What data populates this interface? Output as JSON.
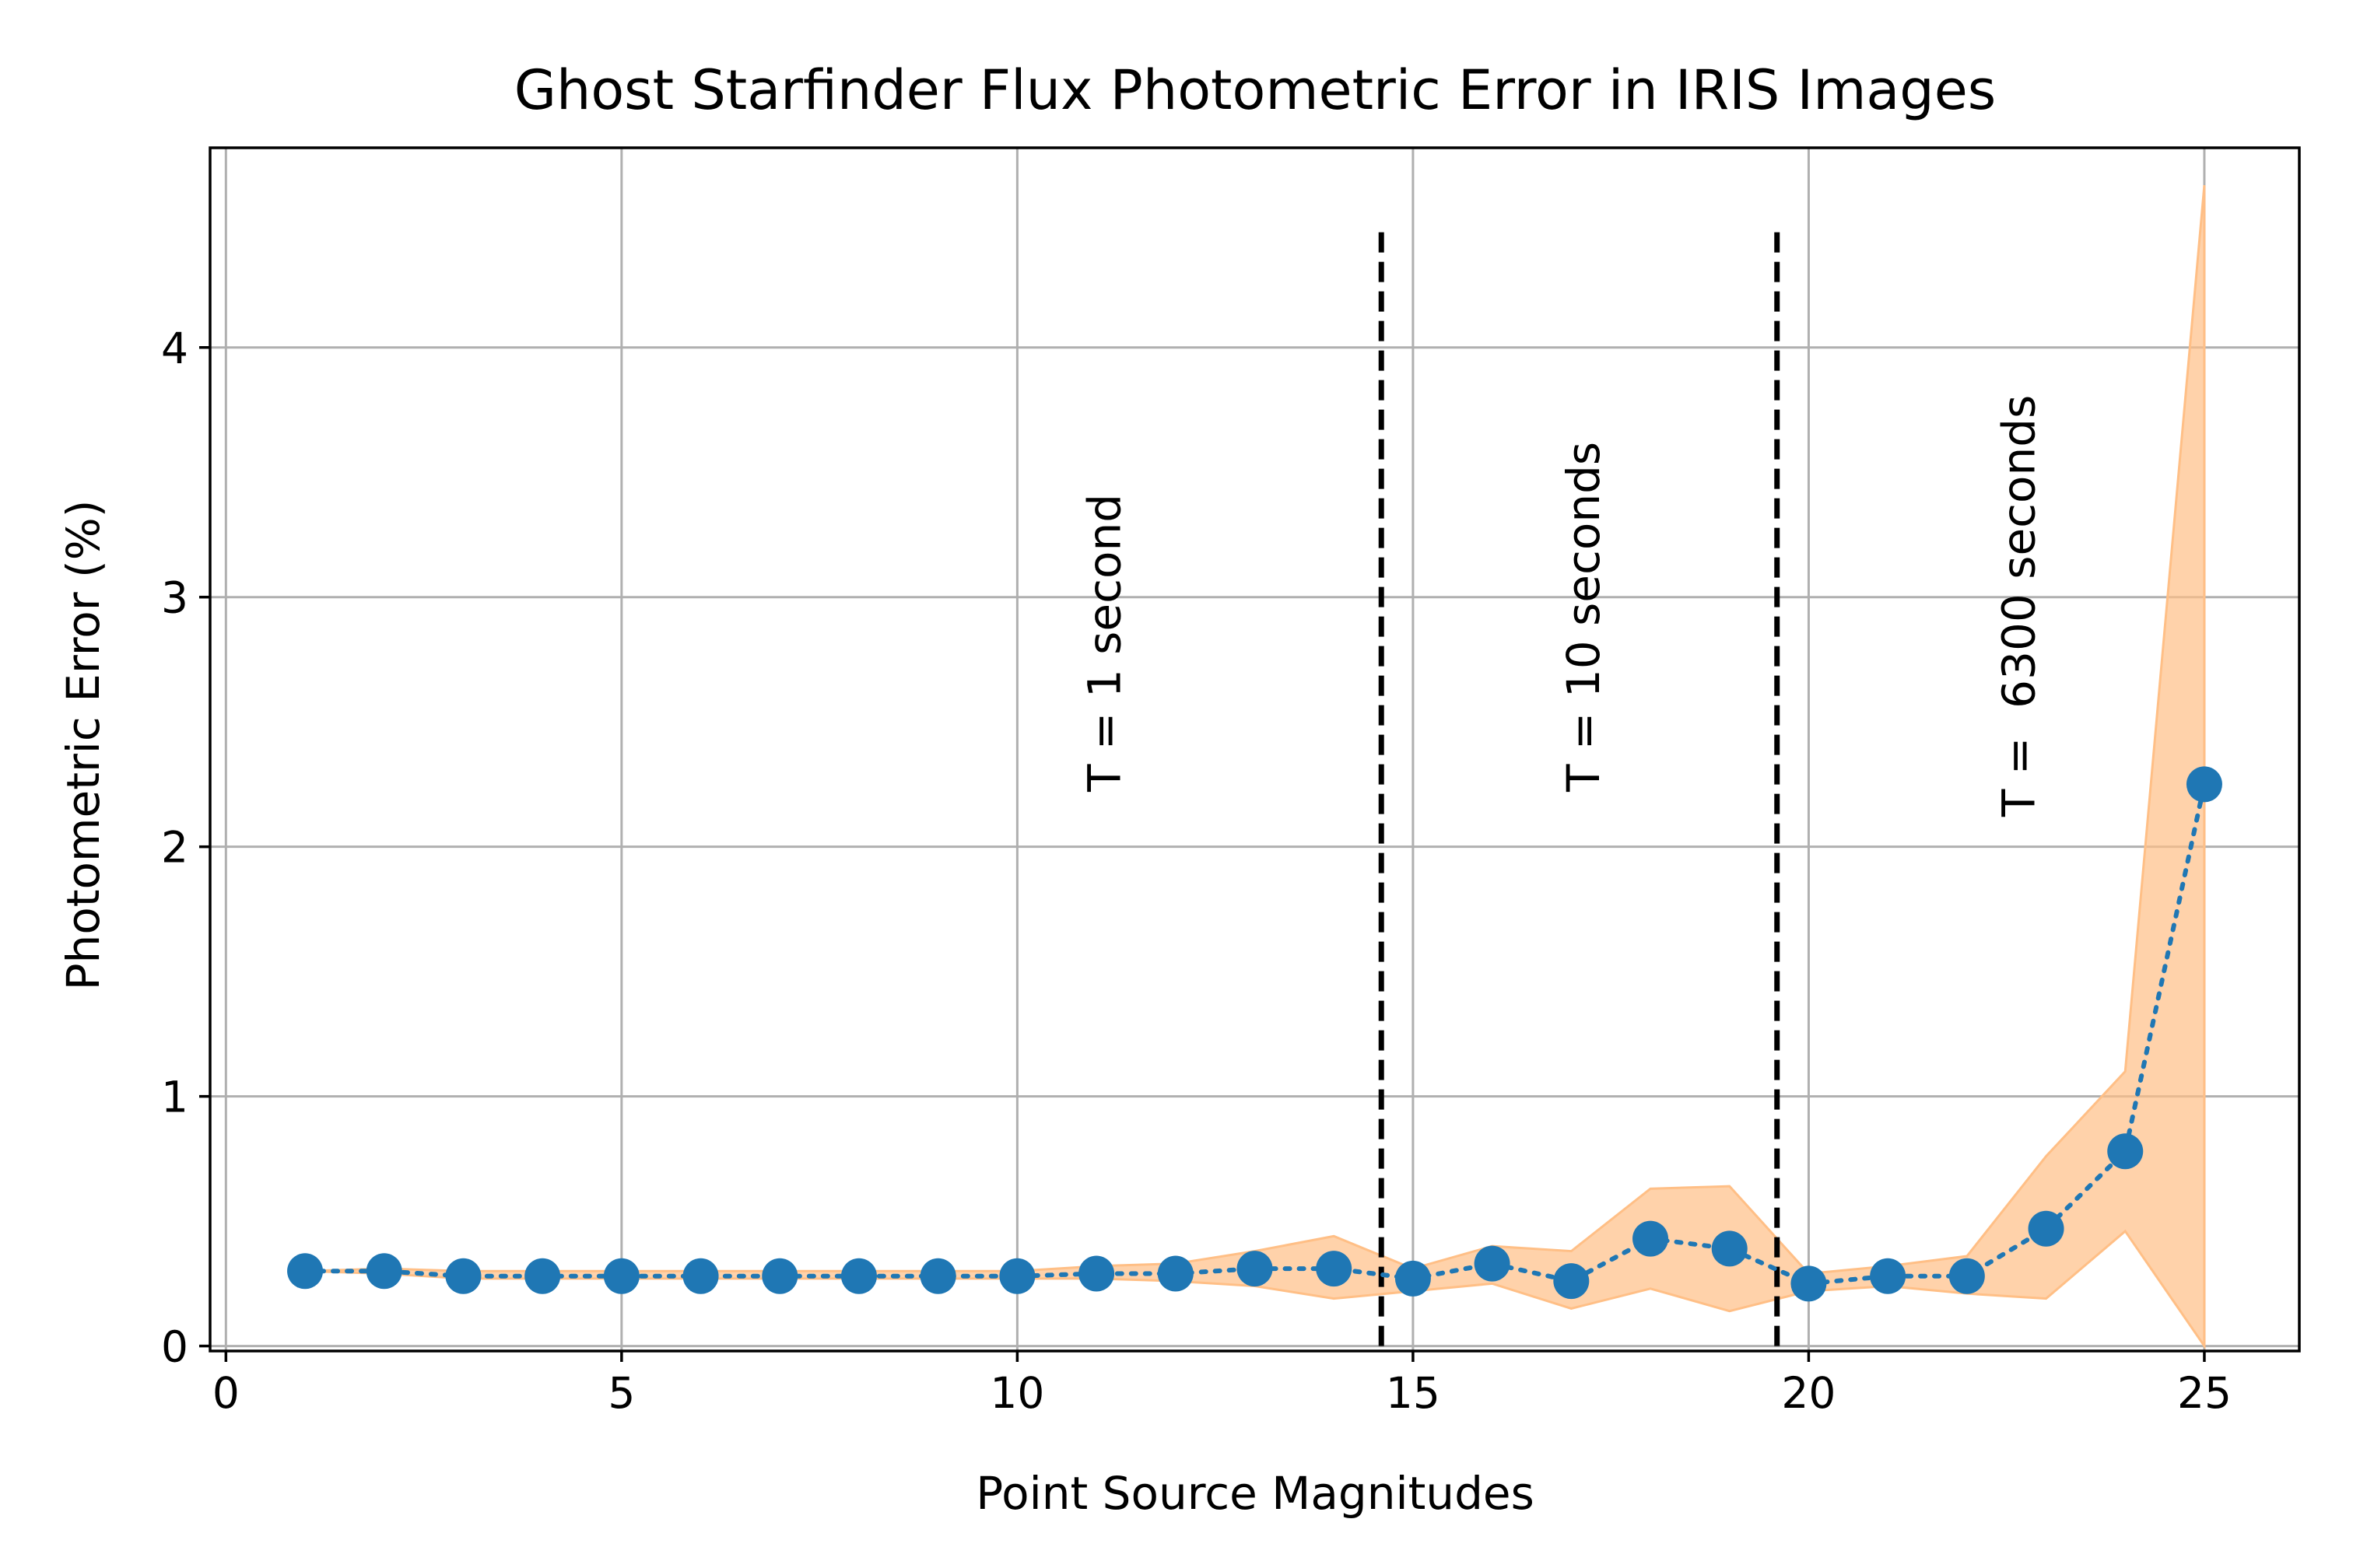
{
  "chart_data": {
    "type": "line",
    "title": "Ghost Starfinder Flux Photometric Error in IRIS Images",
    "xlabel": "Point Source Magnitudes",
    "ylabel": "Photometric Error (%)",
    "xlim": [
      -0.2,
      26.2
    ],
    "ylim": [
      -0.02,
      4.8
    ],
    "xticks": [
      0,
      5,
      10,
      15,
      20,
      25
    ],
    "yticks": [
      0,
      1,
      2,
      3,
      4
    ],
    "grid": true,
    "x": [
      1,
      2,
      3,
      4,
      5,
      6,
      7,
      8,
      9,
      10,
      11,
      12,
      13,
      14,
      15,
      16,
      17,
      18,
      19,
      20,
      21,
      22,
      23,
      24,
      25
    ],
    "series": [
      {
        "values": [
          0.3,
          0.3,
          0.28,
          0.28,
          0.28,
          0.28,
          0.28,
          0.28,
          0.28,
          0.28,
          0.29,
          0.29,
          0.31,
          0.31,
          0.27,
          0.33,
          0.26,
          0.43,
          0.39,
          0.25,
          0.28,
          0.28,
          0.47,
          0.78,
          2.25
        ],
        "color": "#1f77b4",
        "style": "dotted line with circle markers"
      }
    ],
    "band": {
      "color": "#ffbf86",
      "lower": [
        0.3,
        0.29,
        0.27,
        0.27,
        0.27,
        0.27,
        0.27,
        0.27,
        0.27,
        0.27,
        0.27,
        0.26,
        0.24,
        0.19,
        0.22,
        0.25,
        0.15,
        0.23,
        0.14,
        0.22,
        0.24,
        0.21,
        0.19,
        0.46,
        0.0
      ],
      "upper": [
        0.3,
        0.31,
        0.3,
        0.3,
        0.3,
        0.3,
        0.3,
        0.3,
        0.3,
        0.3,
        0.32,
        0.33,
        0.38,
        0.44,
        0.31,
        0.4,
        0.38,
        0.63,
        0.64,
        0.29,
        0.32,
        0.36,
        0.76,
        1.1,
        4.65
      ]
    },
    "vlines": [
      {
        "x": 14.6,
        "ymin": 0,
        "ymax": 4.48,
        "style": "dashed",
        "color": "#000000"
      },
      {
        "x": 19.6,
        "ymin": 0,
        "ymax": 4.48,
        "style": "dashed",
        "color": "#000000"
      }
    ],
    "annotations": [
      {
        "text": "T = 1 second",
        "x": 11.3,
        "y": 2.22,
        "rotation": 90
      },
      {
        "text": "T = 10 seconds",
        "x": 17.35,
        "y": 2.22,
        "rotation": 90
      },
      {
        "text": "T =  6300 seconds",
        "x": 22.85,
        "y": 2.12,
        "rotation": 90
      }
    ]
  }
}
